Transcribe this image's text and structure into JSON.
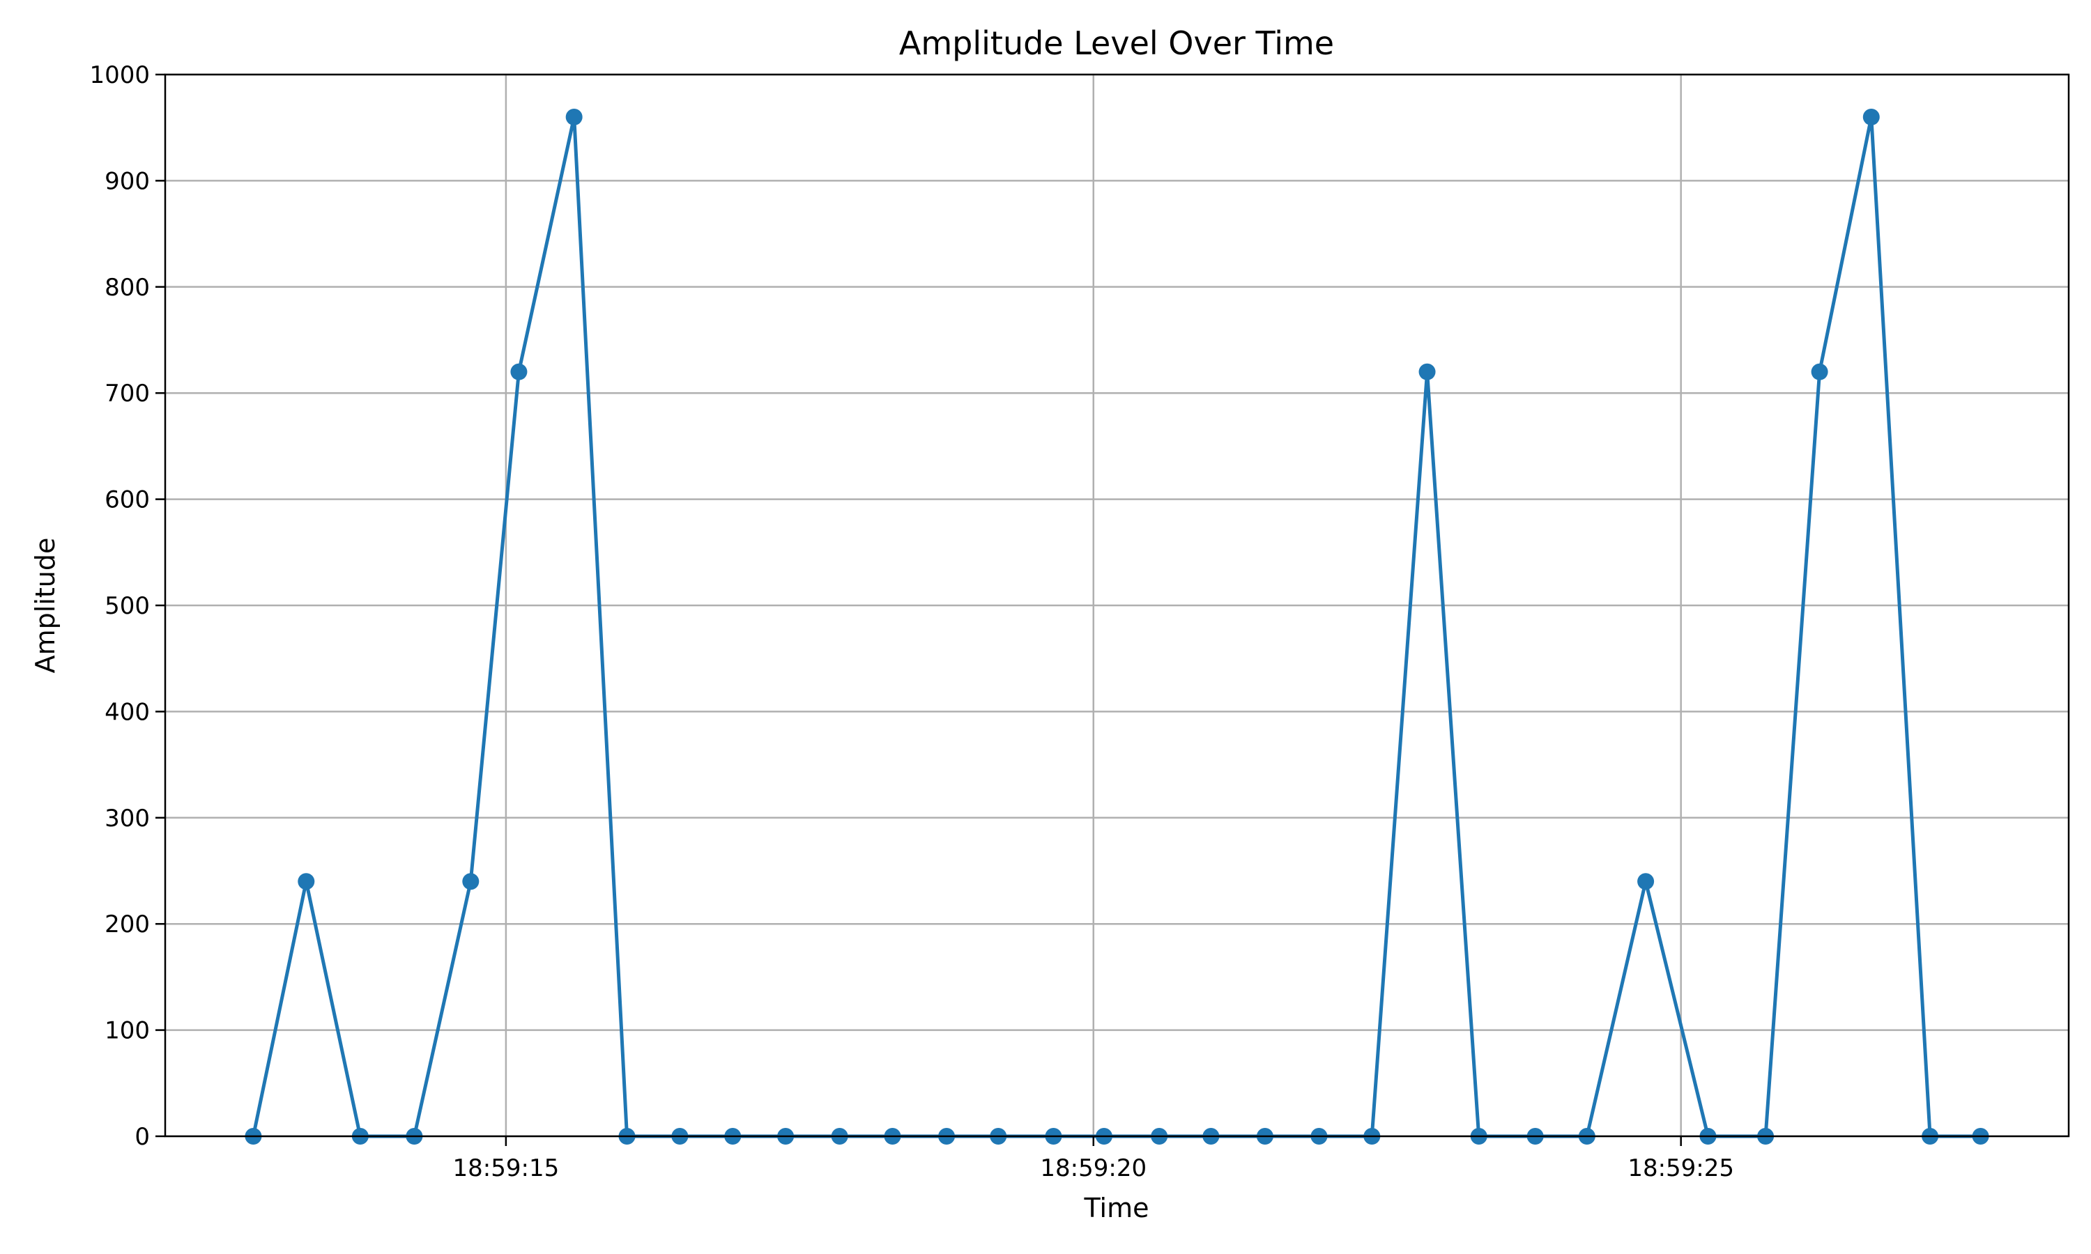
{
  "chart_data": {
    "type": "line",
    "title": "Amplitude Level Over Time",
    "xlabel": "Time",
    "ylabel": "Amplitude",
    "ylim": [
      0,
      1000
    ],
    "yticks": [
      0,
      100,
      200,
      300,
      400,
      500,
      600,
      700,
      800,
      900,
      1000
    ],
    "xlim": [
      "18:59:12.10",
      "18:59:28.30"
    ],
    "xticks": [
      {
        "time": "18:59:15",
        "label": "18:59:15"
      },
      {
        "time": "18:59:20",
        "label": "18:59:20"
      },
      {
        "time": "18:59:25",
        "label": "18:59:25"
      }
    ],
    "grid": true,
    "color": "#1f77b4",
    "marker": "circle",
    "series": [
      {
        "x": [
          "18:59:12.85",
          "18:59:13.30",
          "18:59:13.76",
          "18:59:14.22",
          "18:59:14.70",
          "18:59:15.11",
          "18:59:15.58",
          "18:59:16.03",
          "18:59:16.48",
          "18:59:16.93",
          "18:59:17.38",
          "18:59:17.84",
          "18:59:18.29",
          "18:59:18.75",
          "18:59:19.19",
          "18:59:19.66",
          "18:59:20.09",
          "18:59:20.56",
          "18:59:21.00",
          "18:59:21.46",
          "18:59:21.92",
          "18:59:22.37",
          "18:59:22.84",
          "18:59:23.28",
          "18:59:23.76",
          "18:59:24.20",
          "18:59:24.70",
          "18:59:25.23",
          "18:59:25.72",
          "18:59:26.18",
          "18:59:26.62",
          "18:59:27.12",
          "18:59:27.55"
        ],
        "y": [
          0,
          240,
          0,
          0,
          240,
          720,
          960,
          0,
          0,
          0,
          0,
          0,
          0,
          0,
          0,
          0,
          0,
          0,
          0,
          0,
          0,
          0,
          720,
          0,
          0,
          0,
          240,
          0,
          0,
          720,
          960,
          0,
          0
        ]
      }
    ]
  }
}
